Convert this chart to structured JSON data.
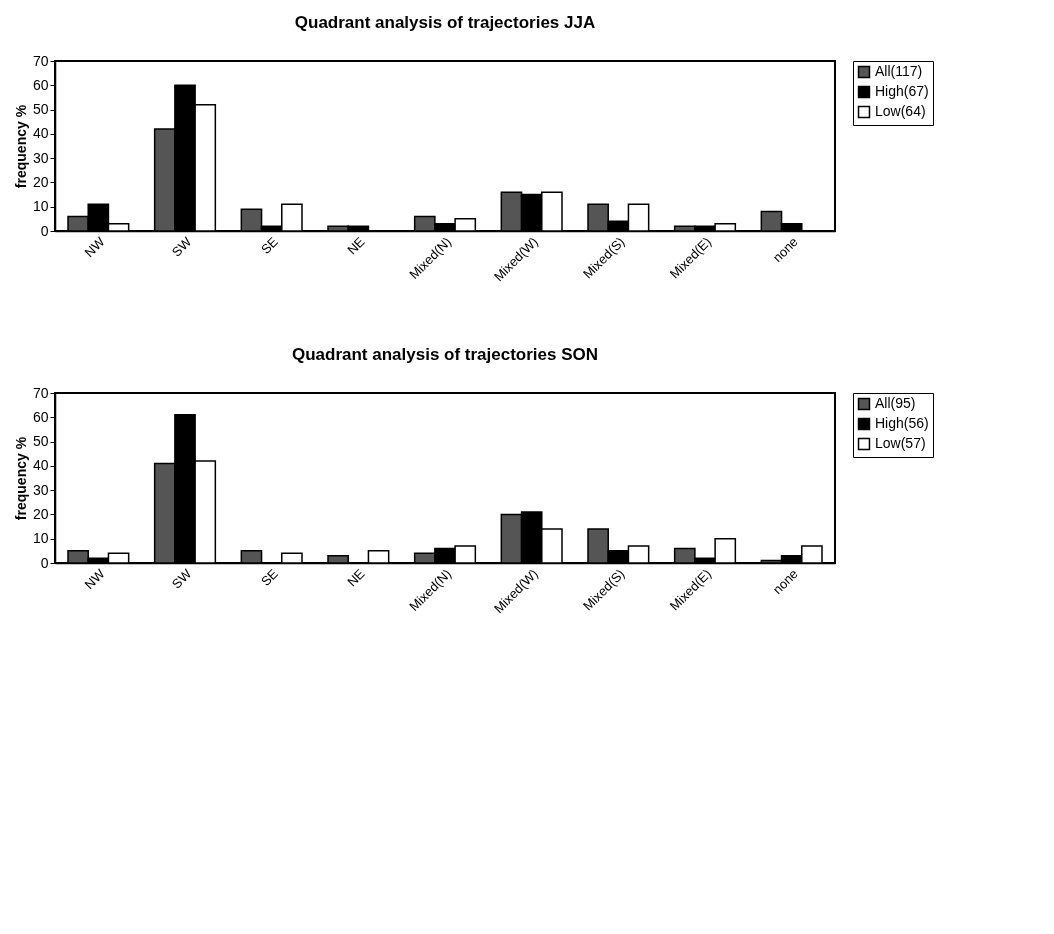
{
  "chart_data": [
    {
      "type": "bar",
      "title": "Quadrant analysis of trajectories JJA",
      "ylabel": "frequency %",
      "categories": [
        "NW",
        "SW",
        "SE",
        "NE",
        "Mixed(N)",
        "Mixed(W)",
        "Mixed(S)",
        "Mixed(E)",
        "none"
      ],
      "ylim": [
        0,
        70
      ],
      "yticks": [
        0,
        10,
        20,
        30,
        40,
        50,
        60,
        70
      ],
      "grid": false,
      "legend": "right",
      "series": [
        {
          "name": "All(117)",
          "color": "#555555",
          "values": [
            6,
            42,
            9,
            2,
            6,
            16,
            11,
            2,
            8
          ]
        },
        {
          "name": "High(67)",
          "color": "#000000",
          "values": [
            11,
            60,
            2,
            2,
            3,
            15,
            4,
            2,
            3
          ]
        },
        {
          "name": "Low(64)",
          "color": "#ffffff",
          "values": [
            3,
            52,
            11,
            0,
            5,
            16,
            11,
            3,
            0
          ]
        }
      ]
    },
    {
      "type": "bar",
      "title": "Quadrant analysis of trajectories SON",
      "ylabel": "frequency %",
      "categories": [
        "NW",
        "SW",
        "SE",
        "NE",
        "Mixed(N)",
        "Mixed(W)",
        "Mixed(S)",
        "Mixed(E)",
        "none"
      ],
      "ylim": [
        0,
        70
      ],
      "yticks": [
        0,
        10,
        20,
        30,
        40,
        50,
        60,
        70
      ],
      "grid": false,
      "legend": "right",
      "series": [
        {
          "name": "All(95)",
          "color": "#555555",
          "values": [
            5,
            41,
            5,
            3,
            4,
            20,
            14,
            6,
            1
          ]
        },
        {
          "name": "High(56)",
          "color": "#000000",
          "values": [
            2,
            61,
            0,
            0,
            6,
            21,
            5,
            2,
            3
          ]
        },
        {
          "name": "Low(57)",
          "color": "#ffffff",
          "values": [
            4,
            42,
            4,
            5,
            7,
            14,
            7,
            10,
            7
          ]
        }
      ]
    }
  ]
}
